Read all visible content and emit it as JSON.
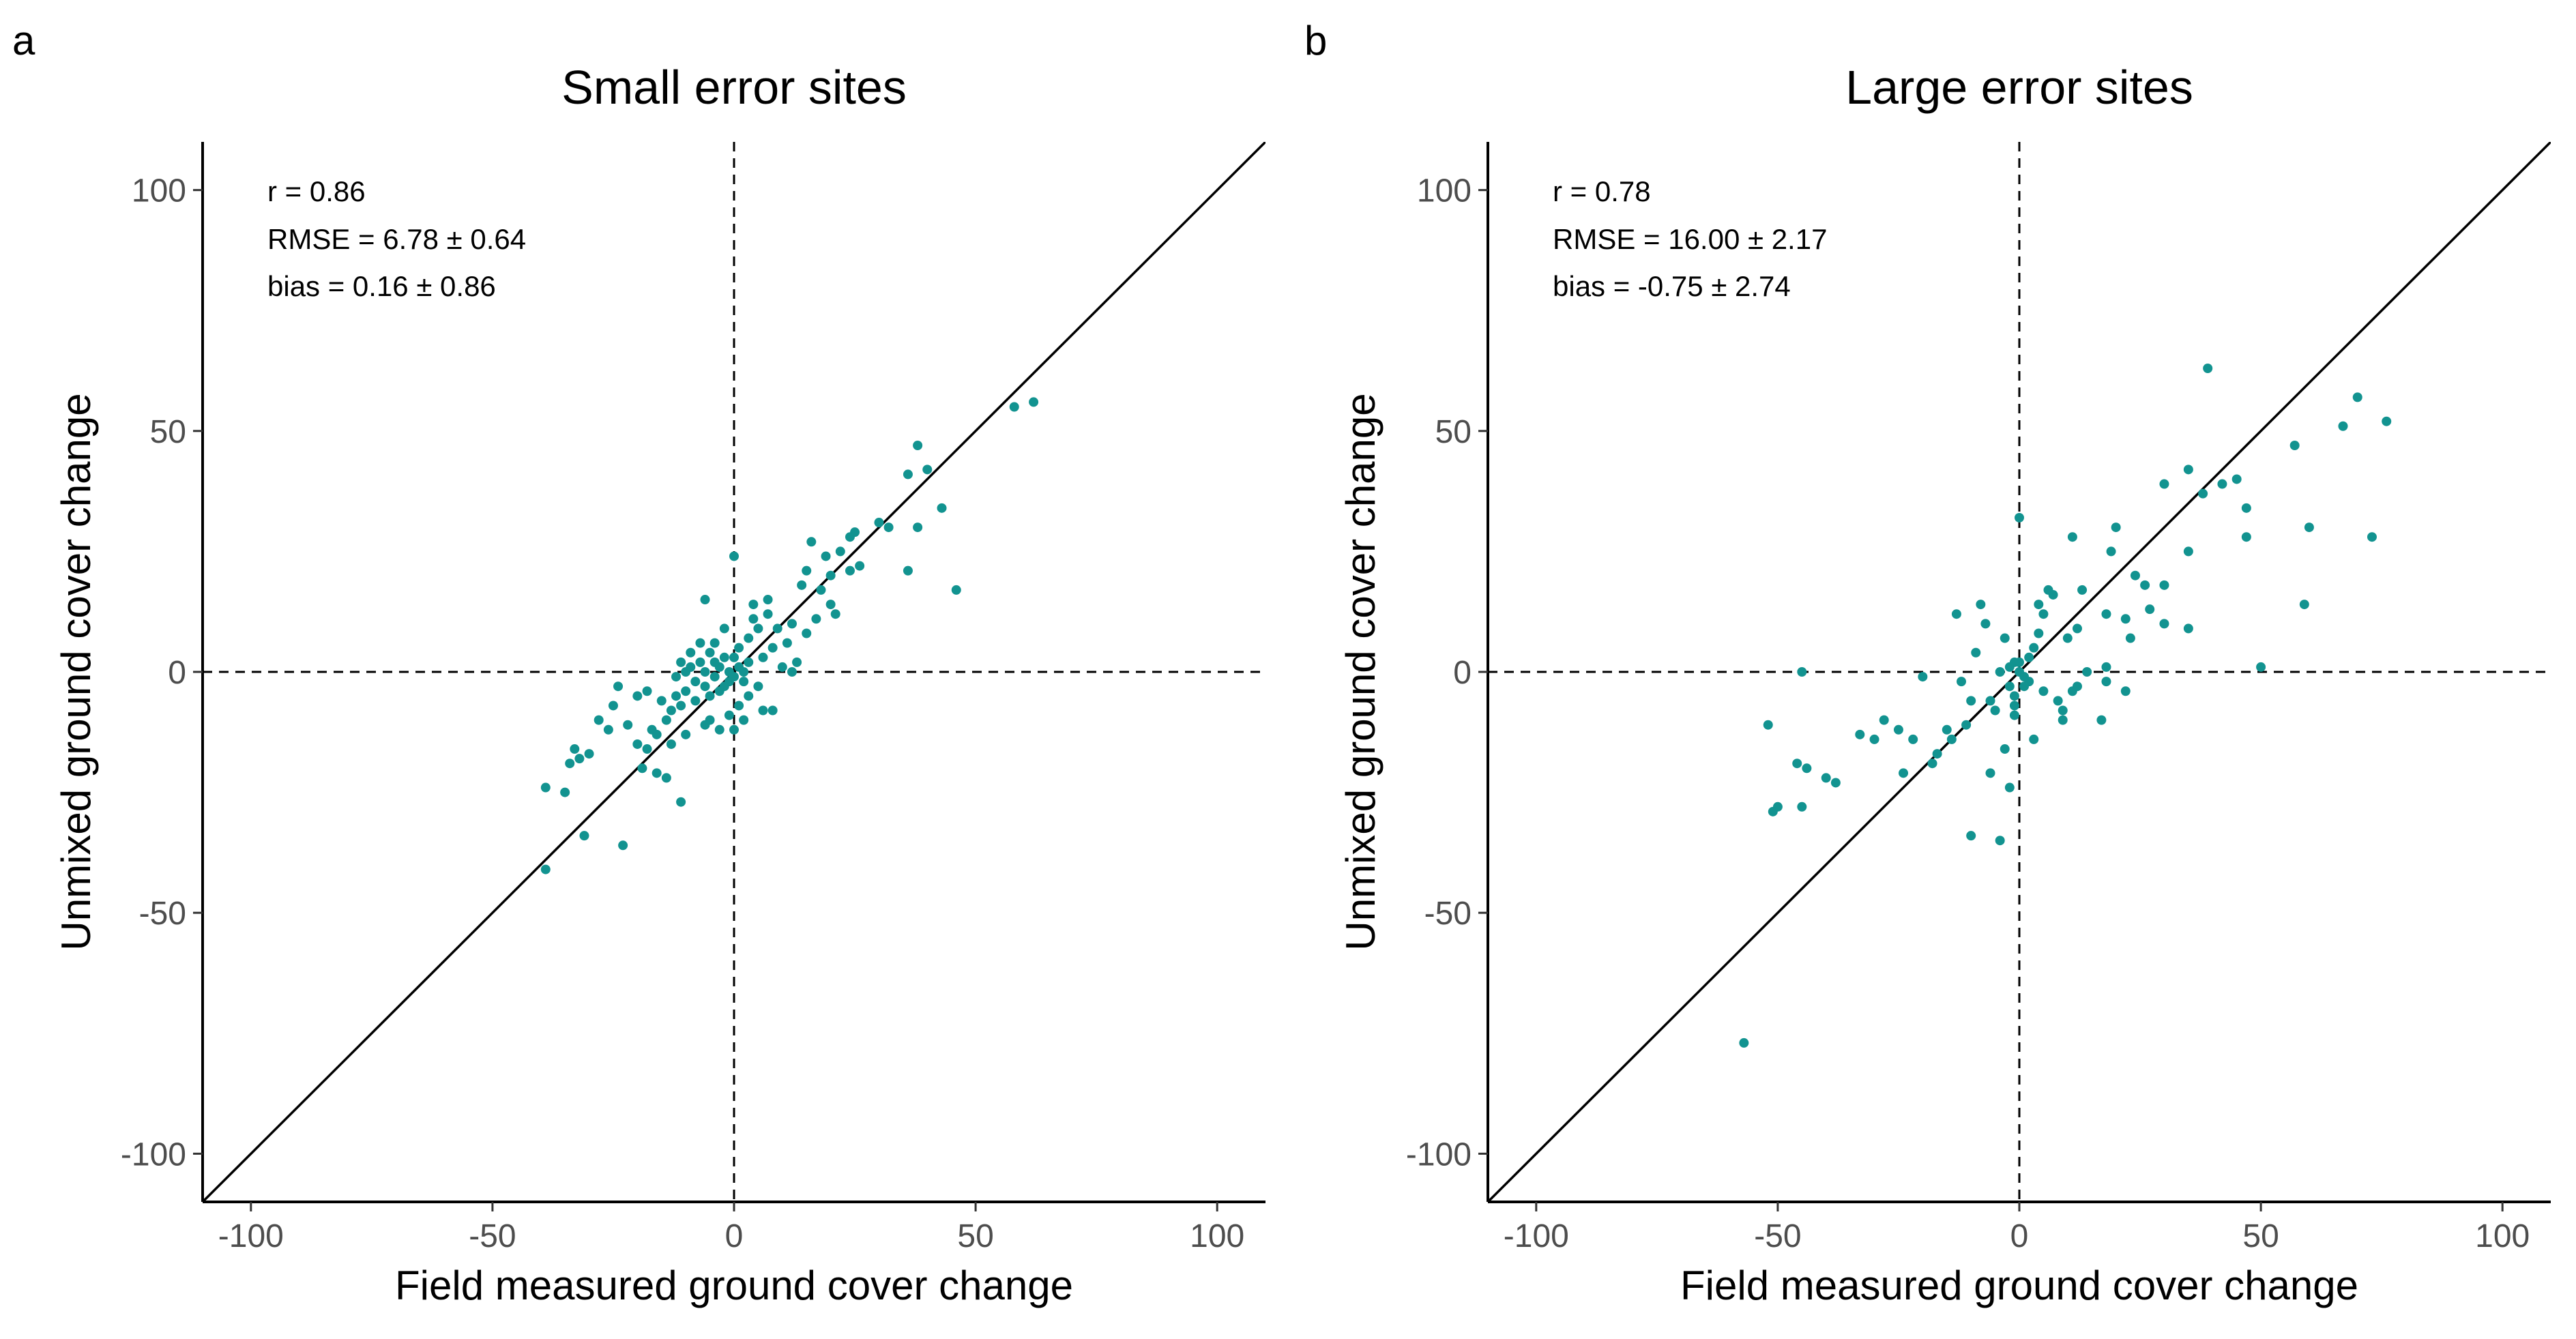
{
  "chart_data": [
    {
      "panel": "a",
      "type": "scatter",
      "title": "Small error sites",
      "xlabel": "Field measured ground cover change",
      "ylabel": "Unmixed ground cover change",
      "xlim": [
        -110,
        110
      ],
      "ylim": [
        -110,
        110
      ],
      "xticks": [
        -100,
        -50,
        0,
        50,
        100
      ],
      "yticks": [
        -100,
        -50,
        0,
        50,
        100
      ],
      "reference_lines": [
        "1:1 line",
        "dashed x = 0",
        "dashed y = 0"
      ],
      "stats": [
        "r = 0.86",
        "RMSE = 6.78 ± 0.64",
        "bias = 0.16 ± 0.86"
      ],
      "point_color": "#129390",
      "points": [
        [
          62,
          56
        ],
        [
          58,
          55
        ],
        [
          40,
          42
        ],
        [
          38,
          47
        ],
        [
          36,
          41
        ],
        [
          43,
          34
        ],
        [
          38,
          30
        ],
        [
          32,
          30
        ],
        [
          30,
          31
        ],
        [
          46,
          17
        ],
        [
          36,
          21
        ],
        [
          25,
          29
        ],
        [
          24,
          28
        ],
        [
          22,
          25
        ],
        [
          26,
          22
        ],
        [
          20,
          20
        ],
        [
          19,
          24
        ],
        [
          16,
          27
        ],
        [
          15,
          21
        ],
        [
          14,
          18
        ],
        [
          18,
          17
        ],
        [
          20,
          14
        ],
        [
          21,
          12
        ],
        [
          17,
          11
        ],
        [
          15,
          8
        ],
        [
          12,
          10
        ],
        [
          11,
          6
        ],
        [
          13,
          2
        ],
        [
          9,
          9
        ],
        [
          8,
          5
        ],
        [
          7,
          12
        ],
        [
          6,
          3
        ],
        [
          5,
          9
        ],
        [
          4,
          14
        ],
        [
          3,
          7
        ],
        [
          3,
          2
        ],
        [
          2,
          0
        ],
        [
          2,
          -2
        ],
        [
          1,
          5
        ],
        [
          1,
          1
        ],
        [
          0,
          -1
        ],
        [
          0,
          3
        ],
        [
          -1,
          0
        ],
        [
          -1,
          -2
        ],
        [
          -2,
          3
        ],
        [
          -2,
          -3
        ],
        [
          -3,
          1
        ],
        [
          -3,
          -4
        ],
        [
          -4,
          2
        ],
        [
          -4,
          -1
        ],
        [
          -5,
          4
        ],
        [
          -5,
          -5
        ],
        [
          -6,
          0
        ],
        [
          -6,
          -3
        ],
        [
          -7,
          6
        ],
        [
          -7,
          2
        ],
        [
          -8,
          -2
        ],
        [
          -8,
          -6
        ],
        [
          -9,
          1
        ],
        [
          -9,
          4
        ],
        [
          -10,
          -4
        ],
        [
          -10,
          0
        ],
        [
          -11,
          2
        ],
        [
          -11,
          -7
        ],
        [
          -12,
          -1
        ],
        [
          -12,
          -5
        ],
        [
          -13,
          -8
        ],
        [
          -14,
          -10
        ],
        [
          -15,
          -6
        ],
        [
          -16,
          -13
        ],
        [
          -17,
          -12
        ],
        [
          -18,
          -16
        ],
        [
          -19,
          -20
        ],
        [
          -20,
          -15
        ],
        [
          -22,
          -11
        ],
        [
          -24,
          -3
        ],
        [
          -25,
          -7
        ],
        [
          -26,
          -12
        ],
        [
          -28,
          -10
        ],
        [
          -30,
          -17
        ],
        [
          -32,
          -18
        ],
        [
          -33,
          -16
        ],
        [
          -34,
          -19
        ],
        [
          -35,
          -25
        ],
        [
          -39,
          -24
        ],
        [
          -39,
          -41
        ],
        [
          -31,
          -34
        ],
        [
          -23,
          -36
        ],
        [
          -11,
          -27
        ],
        [
          -14,
          -22
        ],
        [
          -16,
          -21
        ],
        [
          -5,
          -10
        ],
        [
          -3,
          -12
        ],
        [
          -1,
          -9
        ],
        [
          1,
          -7
        ],
        [
          3,
          -5
        ],
        [
          5,
          -3
        ],
        [
          6,
          -8
        ],
        [
          8,
          -8
        ],
        [
          10,
          1
        ],
        [
          12,
          0
        ],
        [
          -20,
          -5
        ],
        [
          -10,
          -13
        ],
        [
          -6,
          -11
        ],
        [
          0,
          -12
        ],
        [
          2,
          -10
        ],
        [
          4,
          11
        ],
        [
          7,
          15
        ],
        [
          -2,
          9
        ],
        [
          -4,
          6
        ],
        [
          0,
          24
        ],
        [
          -6,
          15
        ],
        [
          24,
          21
        ],
        [
          -18,
          -4
        ],
        [
          -13,
          -15
        ]
      ]
    },
    {
      "panel": "b",
      "type": "scatter",
      "title": "Large error sites",
      "xlabel": "Field measured ground cover change",
      "ylabel": "Unmixed ground cover change",
      "xlim": [
        -110,
        110
      ],
      "ylim": [
        -110,
        110
      ],
      "xticks": [
        -100,
        -50,
        0,
        50,
        100
      ],
      "yticks": [
        -100,
        -50,
        0,
        50,
        100
      ],
      "reference_lines": [
        "1:1 line",
        "dashed x = 0",
        "dashed y = 0"
      ],
      "stats": [
        "r = 0.78",
        "RMSE = 16.00 ± 2.17",
        "bias = -0.75 ± 2.74"
      ],
      "point_color": "#129390",
      "points": [
        [
          -57,
          -77
        ],
        [
          76,
          52
        ],
        [
          70,
          57
        ],
        [
          67,
          51
        ],
        [
          60,
          30
        ],
        [
          59,
          14
        ],
        [
          57,
          47
        ],
        [
          73,
          28
        ],
        [
          50,
          1
        ],
        [
          47,
          34
        ],
        [
          45,
          40
        ],
        [
          47,
          28
        ],
        [
          42,
          39
        ],
        [
          39,
          63
        ],
        [
          38,
          37
        ],
        [
          35,
          42
        ],
        [
          35,
          25
        ],
        [
          35,
          9
        ],
        [
          30,
          18
        ],
        [
          30,
          10
        ],
        [
          30,
          39
        ],
        [
          27,
          13
        ],
        [
          24,
          20
        ],
        [
          23,
          7
        ],
        [
          22,
          11
        ],
        [
          20,
          30
        ],
        [
          19,
          25
        ],
        [
          18,
          12
        ],
        [
          17,
          -10
        ],
        [
          18,
          1
        ],
        [
          18,
          -2
        ],
        [
          14,
          0
        ],
        [
          13,
          17
        ],
        [
          12,
          9
        ],
        [
          11,
          -4
        ],
        [
          10,
          7
        ],
        [
          9,
          -8
        ],
        [
          8,
          -6
        ],
        [
          7,
          16
        ],
        [
          6,
          17
        ],
        [
          5,
          12
        ],
        [
          4,
          14
        ],
        [
          3,
          5
        ],
        [
          2,
          3
        ],
        [
          1,
          -1
        ],
        [
          0,
          32
        ],
        [
          0,
          0
        ],
        [
          -1,
          2
        ],
        [
          -1,
          -5
        ],
        [
          -2,
          -3
        ],
        [
          -3,
          7
        ],
        [
          -4,
          0
        ],
        [
          -5,
          -8
        ],
        [
          -6,
          -6
        ],
        [
          -7,
          10
        ],
        [
          -8,
          14
        ],
        [
          -9,
          4
        ],
        [
          -10,
          -6
        ],
        [
          -11,
          -11
        ],
        [
          -12,
          -2
        ],
        [
          -13,
          12
        ],
        [
          -14,
          -14
        ],
        [
          -15,
          -12
        ],
        [
          -17,
          -17
        ],
        [
          -18,
          -19
        ],
        [
          -20,
          -1
        ],
        [
          -22,
          -14
        ],
        [
          -24,
          -21
        ],
        [
          -25,
          -12
        ],
        [
          -28,
          -10
        ],
        [
          -30,
          -14
        ],
        [
          -33,
          -13
        ],
        [
          -38,
          -23
        ],
        [
          -40,
          -22
        ],
        [
          -44,
          -20
        ],
        [
          -45,
          -28
        ],
        [
          -45,
          0
        ],
        [
          -46,
          -19
        ],
        [
          -50,
          -28
        ],
        [
          -51,
          -29
        ],
        [
          -52,
          -11
        ],
        [
          -4,
          -35
        ],
        [
          -2,
          -24
        ],
        [
          -6,
          -21
        ],
        [
          -10,
          -34
        ],
        [
          -1,
          -9
        ],
        [
          3,
          -14
        ],
        [
          4,
          8
        ],
        [
          -3,
          -16
        ],
        [
          22,
          -4
        ],
        [
          26,
          18
        ],
        [
          11,
          28
        ],
        [
          2,
          -2
        ],
        [
          1,
          -3
        ],
        [
          0,
          2
        ],
        [
          -2,
          1
        ],
        [
          5,
          -4
        ],
        [
          -1,
          -7
        ],
        [
          9,
          -10
        ],
        [
          12,
          -3
        ]
      ]
    }
  ]
}
